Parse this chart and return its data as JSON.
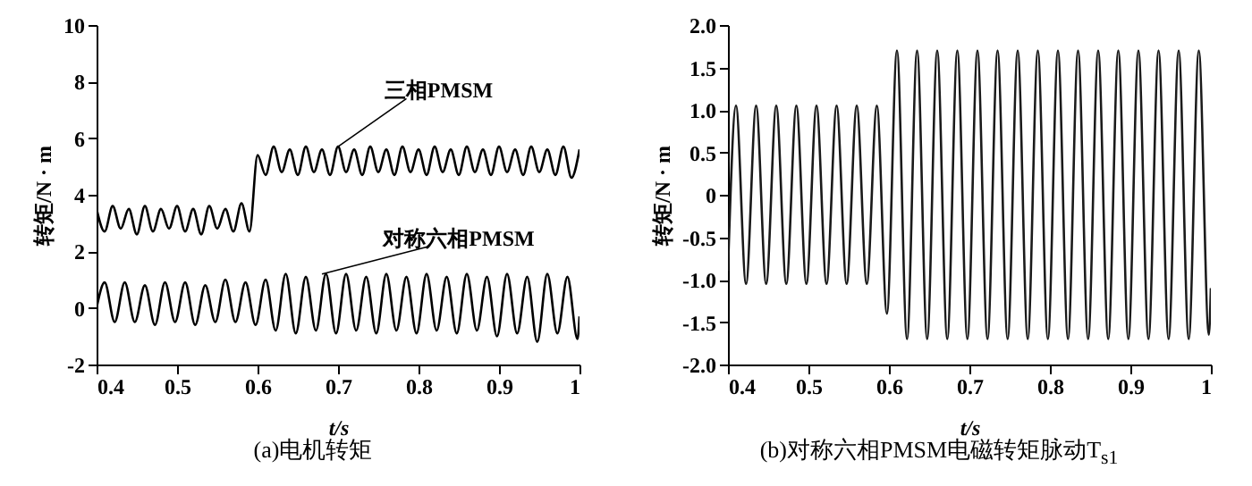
{
  "chart_data": [
    {
      "type": "line",
      "title": "(a)电机转矩",
      "xlabel": "t/s",
      "ylabel": "转矩/N · m",
      "xlim": [
        0.4,
        1
      ],
      "xticks": [
        0.4,
        0.5,
        0.6,
        0.7,
        0.8,
        0.9,
        1
      ],
      "ylim": [
        -2,
        10
      ],
      "yticks": [
        -2,
        0,
        2,
        4,
        6,
        8,
        10
      ],
      "grid": false,
      "annotations": [
        {
          "text": "三相PMSM",
          "x": 0.7,
          "y": 5.7
        },
        {
          "text": "对称六相PMSM",
          "x": 0.68,
          "y": 1.2
        }
      ],
      "series": [
        {
          "color": "#000000",
          "x": [
            0.4,
            0.41,
            0.42,
            0.43,
            0.44,
            0.45,
            0.46,
            0.47,
            0.48,
            0.49,
            0.5,
            0.51,
            0.52,
            0.53,
            0.54,
            0.55,
            0.56,
            0.57,
            0.58,
            0.59,
            0.6,
            0.61,
            0.62,
            0.63,
            0.64,
            0.65,
            0.66,
            0.67,
            0.68,
            0.69,
            0.7,
            0.71,
            0.72,
            0.73,
            0.74,
            0.75,
            0.76,
            0.77,
            0.78,
            0.79,
            0.8,
            0.81,
            0.82,
            0.83,
            0.84,
            0.85,
            0.86,
            0.87,
            0.88,
            0.89,
            0.9,
            0.91,
            0.92,
            0.93,
            0.94,
            0.95,
            0.96,
            0.97,
            0.98,
            0.99,
            1.0
          ],
          "values": [
            3.5,
            2.7,
            3.6,
            2.8,
            3.5,
            2.6,
            3.6,
            2.7,
            3.5,
            2.8,
            3.6,
            2.7,
            3.5,
            2.6,
            3.6,
            2.8,
            3.5,
            2.7,
            3.7,
            2.7,
            5.4,
            4.7,
            5.7,
            4.8,
            5.6,
            4.7,
            5.7,
            4.8,
            5.6,
            4.7,
            5.7,
            4.8,
            5.6,
            4.7,
            5.7,
            4.8,
            5.6,
            4.7,
            5.7,
            4.8,
            5.6,
            4.7,
            5.7,
            4.8,
            5.6,
            4.7,
            5.7,
            4.8,
            5.6,
            4.7,
            5.7,
            4.8,
            5.6,
            4.7,
            5.7,
            4.8,
            5.6,
            4.7,
            5.7,
            4.6,
            5.6
          ]
        },
        {
          "color": "#000000",
          "x": [
            0.4,
            0.41,
            0.4225,
            0.435,
            0.4475,
            0.46,
            0.4725,
            0.485,
            0.4975,
            0.51,
            0.5225,
            0.535,
            0.5475,
            0.56,
            0.5725,
            0.585,
            0.5975,
            0.61,
            0.6225,
            0.635,
            0.6475,
            0.66,
            0.6725,
            0.685,
            0.6975,
            0.71,
            0.7225,
            0.735,
            0.7475,
            0.76,
            0.7725,
            0.785,
            0.7975,
            0.81,
            0.8225,
            0.835,
            0.8475,
            0.86,
            0.8725,
            0.885,
            0.8975,
            0.91,
            0.9225,
            0.935,
            0.9475,
            0.96,
            0.9725,
            0.985,
            0.9975,
            1.0
          ],
          "values": [
            0.0,
            0.9,
            -0.5,
            0.9,
            -0.5,
            0.8,
            -0.6,
            0.9,
            -0.5,
            0.9,
            -0.6,
            0.8,
            -0.5,
            1.0,
            -0.5,
            0.9,
            -0.6,
            1.0,
            -0.8,
            1.2,
            -0.9,
            1.1,
            -0.8,
            1.2,
            -0.9,
            1.2,
            -0.8,
            1.1,
            -0.9,
            1.2,
            -0.8,
            1.1,
            -0.9,
            1.2,
            -0.8,
            1.1,
            -0.9,
            1.2,
            -0.8,
            1.1,
            -1.0,
            1.2,
            -0.9,
            1.1,
            -1.2,
            1.2,
            -0.9,
            1.1,
            -1.1,
            -0.3
          ]
        }
      ]
    },
    {
      "type": "line",
      "title": "(b)对称六相PMSM电磁转矩脉动T$_{s1}$",
      "xlabel": "t/s",
      "ylabel": "转矩/N · m",
      "xlim": [
        0.4,
        1
      ],
      "xticks": [
        0.4,
        0.5,
        0.6,
        0.7,
        0.8,
        0.9,
        1
      ],
      "ylim": [
        -2,
        2
      ],
      "yticks": [
        {
          "value": -2,
          "label": "-2.0"
        },
        {
          "value": -1.5,
          "label": "-1.5"
        },
        {
          "value": -1,
          "label": "-1.0"
        },
        {
          "value": -0.5,
          "label": "-0.5"
        },
        0,
        {
          "value": 0.5,
          "label": "0.5"
        },
        {
          "value": 1,
          "label": "1.0"
        },
        {
          "value": 1.5,
          "label": "1.5"
        },
        {
          "value": 2,
          "label": "2.0"
        }
      ],
      "grid": false,
      "series": [
        {
          "color": "#1a1a1a",
          "x": [
            0.4,
            0.41,
            0.4225,
            0.435,
            0.4475,
            0.46,
            0.4725,
            0.485,
            0.4975,
            0.51,
            0.5225,
            0.535,
            0.5475,
            0.56,
            0.5725,
            0.585,
            0.5975,
            0.61,
            0.6225,
            0.635,
            0.6475,
            0.66,
            0.6725,
            0.685,
            0.6975,
            0.71,
            0.7225,
            0.735,
            0.7475,
            0.76,
            0.7725,
            0.785,
            0.7975,
            0.81,
            0.8225,
            0.835,
            0.8475,
            0.86,
            0.8725,
            0.885,
            0.8975,
            0.91,
            0.9225,
            0.935,
            0.9475,
            0.96,
            0.9725,
            0.985,
            0.9975,
            1.0
          ],
          "values": [
            -0.9,
            1.05,
            -1.05,
            1.05,
            -1.05,
            1.05,
            -1.05,
            1.05,
            -1.05,
            1.05,
            -1.05,
            1.05,
            -1.05,
            1.05,
            -1.05,
            1.05,
            -1.4,
            1.7,
            -1.7,
            1.7,
            -1.7,
            1.7,
            -1.7,
            1.7,
            -1.7,
            1.7,
            -1.7,
            1.7,
            -1.7,
            1.7,
            -1.7,
            1.7,
            -1.7,
            1.7,
            -1.7,
            1.7,
            -1.7,
            1.7,
            -1.7,
            1.7,
            -1.7,
            1.7,
            -1.7,
            1.7,
            -1.7,
            1.7,
            -1.7,
            1.7,
            -1.65,
            -1.1
          ]
        }
      ]
    }
  ]
}
